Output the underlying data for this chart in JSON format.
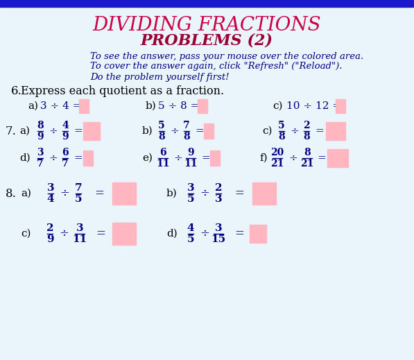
{
  "title1": "DIVIDING FRACTIONS",
  "title2": "PROBLEMS (2)",
  "instruction1": "To see the answer, pass your mouse over the colored area.",
  "instruction2": "To cover the answer again, click \"Refresh\" (\"Reload\").",
  "instruction3": "Do the problem yourself first!",
  "bg_color": "#eaf4fb",
  "title1_color": "#cc0044",
  "title2_color": "#990033",
  "instruction_color": "#000080",
  "label_color": "#000000",
  "prob_color": "#000080",
  "answer_box_color": "#ffb6c1",
  "top_border_color": "#1a1acc",
  "section6_text": "Express each quotient as a fraction."
}
